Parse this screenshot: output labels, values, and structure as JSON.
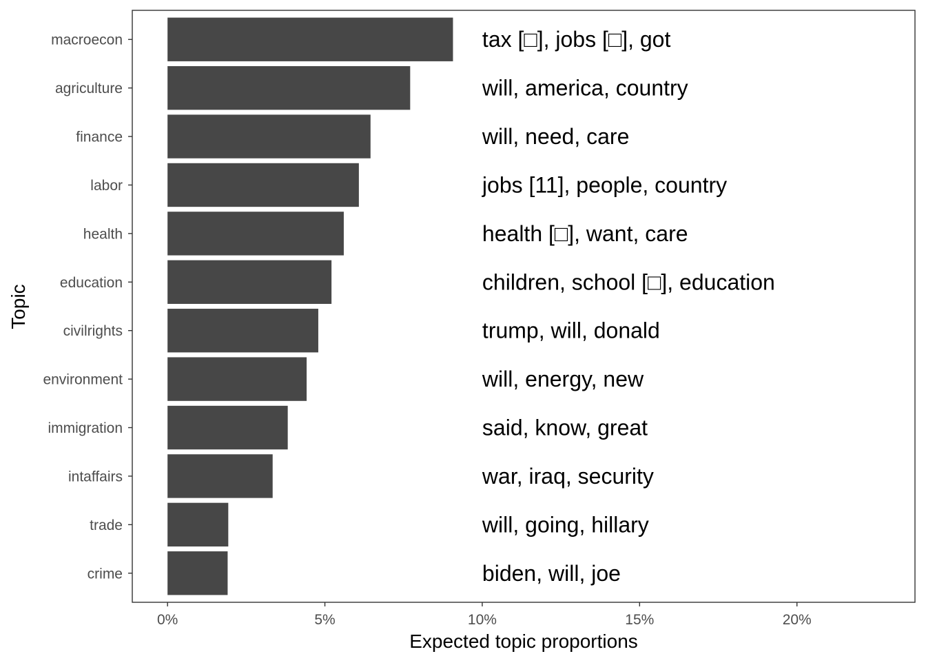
{
  "chart_data": {
    "type": "bar",
    "orientation": "horizontal",
    "xlabel": "Expected topic proportions",
    "ylabel": "Topic",
    "xlim": [
      -0.0112,
      0.2375
    ],
    "x_ticks": [
      0,
      0.05,
      0.1,
      0.15,
      0.2
    ],
    "x_tick_labels": [
      "0%",
      "5%",
      "10%",
      "15%",
      "20%"
    ],
    "categories": [
      "macroecon",
      "agriculture",
      "finance",
      "labor",
      "health",
      "education",
      "civilrights",
      "environment",
      "immigration",
      "intaffairs",
      "trade",
      "crime"
    ],
    "values": [
      0.0907,
      0.0771,
      0.0645,
      0.0608,
      0.056,
      0.0521,
      0.0479,
      0.0442,
      0.0382,
      0.0334,
      0.0193,
      0.0191
    ],
    "labels": [
      "tax [□], jobs [□], got",
      "will, america, country",
      "will, need, care",
      "jobs [11], people, country",
      "health [□], want, care",
      "children, school [□], education",
      "trump, will, donald",
      "will, energy, new",
      "said, know, great",
      "war, iraq, security",
      "will, going, hillary",
      "biden, will, joe"
    ],
    "label_x": 0.1,
    "grid": false,
    "legend": "none",
    "bar_color": "#474747"
  }
}
